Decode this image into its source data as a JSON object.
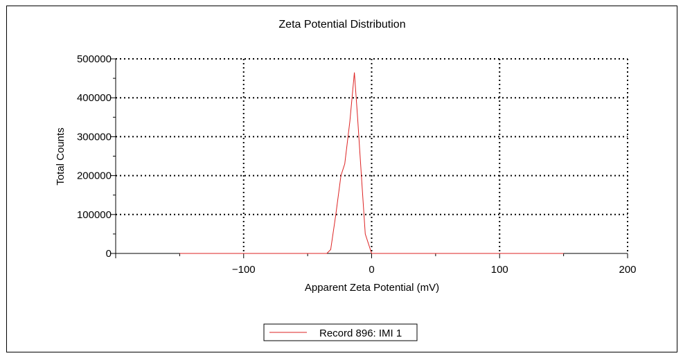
{
  "chart_data": {
    "type": "line",
    "title": "Zeta Potential Distribution",
    "xlabel": "Apparent Zeta Potential (mV)",
    "ylabel": "Total Counts",
    "xlim": [
      -200,
      200
    ],
    "ylim": [
      0,
      500000
    ],
    "x_ticks": [
      -100,
      0,
      100,
      200
    ],
    "y_ticks": [
      0,
      100000,
      200000,
      300000,
      400000,
      500000
    ],
    "grid": true,
    "legend_position": "bottom-center",
    "series": [
      {
        "name": "Record 896: IMI 1",
        "color": "#dd2222",
        "x": [
          -150,
          -35,
          -32,
          -28,
          -24,
          -21,
          -17,
          -13.5,
          -11,
          -8,
          -5,
          0,
          150
        ],
        "y": [
          0,
          0,
          10000,
          100000,
          200000,
          230000,
          340000,
          465000,
          350000,
          200000,
          50000,
          0,
          0
        ]
      }
    ]
  }
}
